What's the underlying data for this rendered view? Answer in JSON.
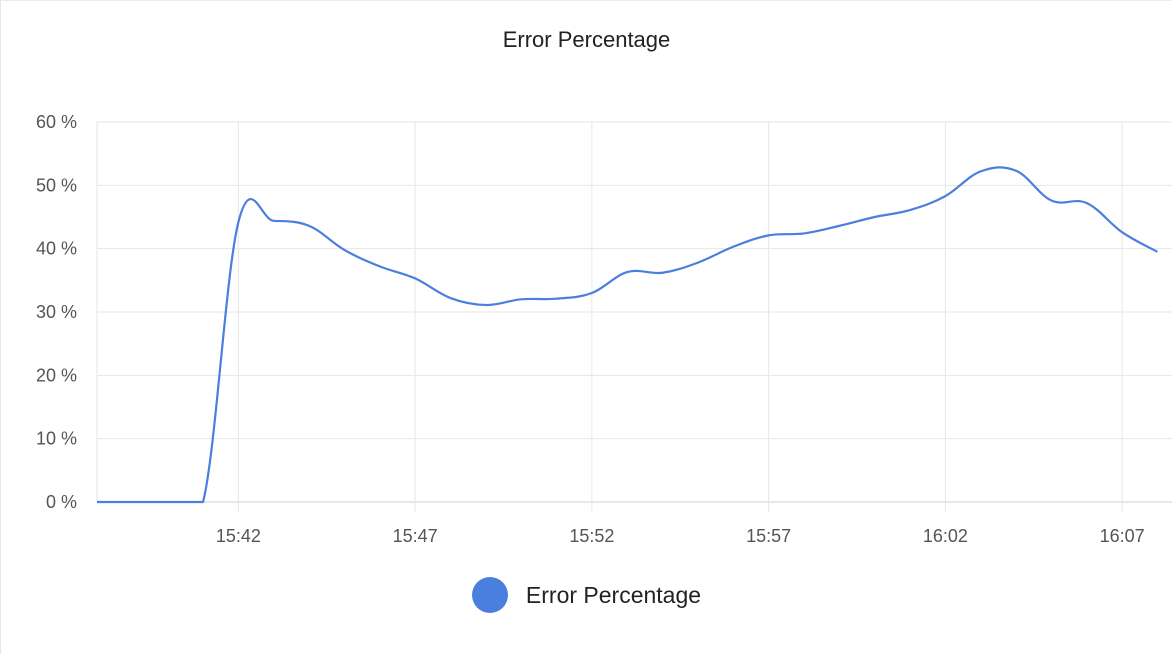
{
  "colors": {
    "line": "#4a7fe0",
    "grid": "#e6e6e6",
    "axis": "#cfcfcf"
  },
  "chart_data": {
    "type": "line",
    "title": "Error Percentage",
    "xlabel": "",
    "ylabel": "",
    "ylim": [
      0,
      60
    ],
    "y_ticks": [
      "0 %",
      "10 %",
      "20 %",
      "30 %",
      "40 %",
      "50 %",
      "60 %"
    ],
    "x_ticks": [
      "15:42",
      "15:47",
      "15:52",
      "15:57",
      "16:02",
      "16:07"
    ],
    "x_range": [
      "15:38",
      "16:08"
    ],
    "grid": true,
    "legend_position": "bottom",
    "series": [
      {
        "name": "Error Percentage",
        "color": "#4a7fe0",
        "points": [
          [
            "15:38",
            0
          ],
          [
            "15:39",
            0
          ],
          [
            "15:40",
            0
          ],
          [
            "15:41",
            0
          ],
          [
            "15:42",
            44.2
          ],
          [
            "15:43",
            44.4
          ],
          [
            "15:44",
            43.6
          ],
          [
            "15:45",
            39.8
          ],
          [
            "15:46",
            37.2
          ],
          [
            "15:47",
            35.3
          ],
          [
            "15:48",
            32.2
          ],
          [
            "15:49",
            31.1
          ],
          [
            "15:50",
            32.0
          ],
          [
            "15:51",
            32.1
          ],
          [
            "15:52",
            33.0
          ],
          [
            "15:53",
            36.3
          ],
          [
            "15:54",
            36.2
          ],
          [
            "15:55",
            37.8
          ],
          [
            "15:56",
            40.3
          ],
          [
            "15:57",
            42.1
          ],
          [
            "15:58",
            42.4
          ],
          [
            "15:59",
            43.6
          ],
          [
            "16:00",
            45.0
          ],
          [
            "16:01",
            46.1
          ],
          [
            "16:02",
            48.3
          ],
          [
            "16:03",
            52.2
          ],
          [
            "16:04",
            52.3
          ],
          [
            "16:05",
            47.6
          ],
          [
            "16:06",
            47.2
          ],
          [
            "16:07",
            42.6
          ],
          [
            "16:08",
            39.5
          ]
        ]
      }
    ]
  }
}
